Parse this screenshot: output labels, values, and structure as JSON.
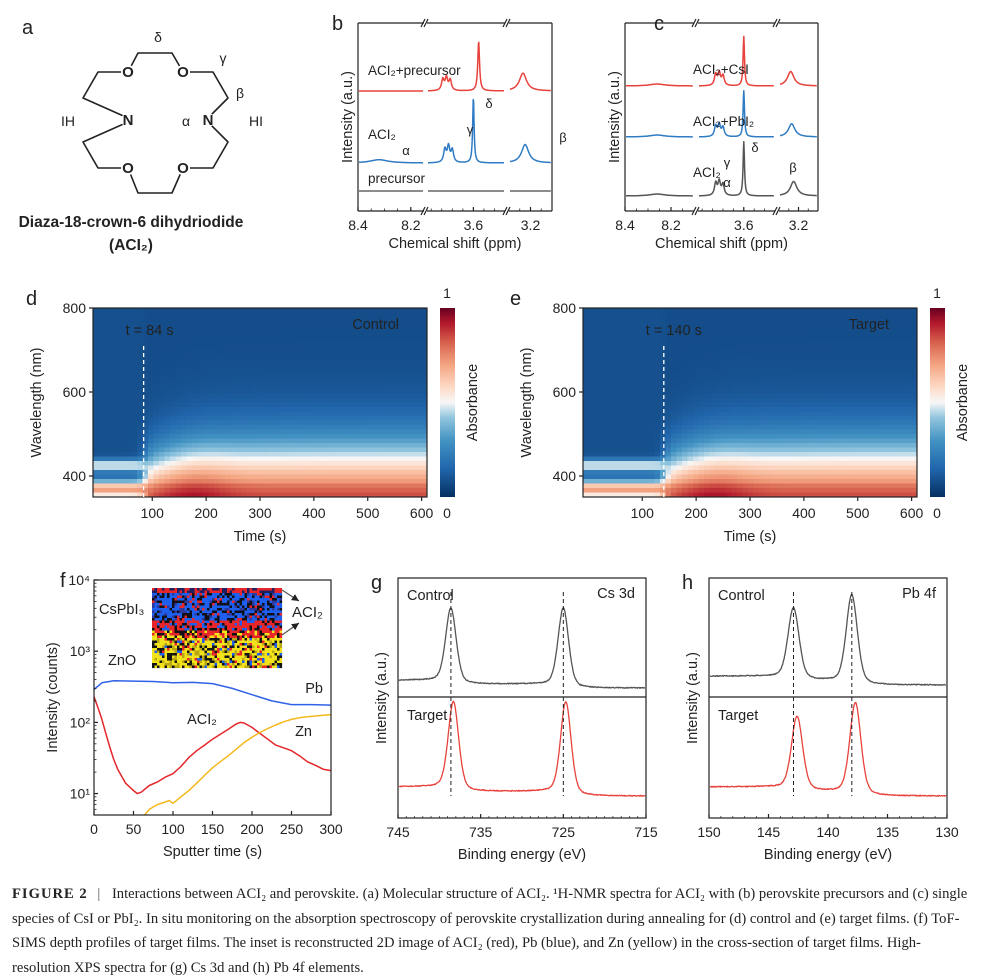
{
  "molecule": {
    "panel_letter": "a",
    "name": "Diaza-18-crown-6 dihydriodide",
    "formula": "(ACI₂)",
    "oxygen_label": "O",
    "nitrogen_label": "N",
    "left_salt": "IH",
    "right_salt": "HI",
    "greek_labels": {
      "delta": "δ",
      "gamma": "γ",
      "beta": "β",
      "alpha": "α"
    },
    "colors": {
      "oxygen": "#e01e1e",
      "nitrogen": "#2f6db5",
      "bond": "#222222"
    }
  },
  "chart_data": [
    {
      "panel_letter": "b",
      "type": "line",
      "xlabel": "Chemical shift (ppm)",
      "ylabel": "Intensity (a.u.)",
      "x_segments": [
        [
          8.4,
          8.15
        ],
        [
          3.82,
          3.45
        ],
        [
          3.3,
          3.1
        ]
      ],
      "xticks": [
        {
          "value": 8.4,
          "label": "8.4"
        },
        {
          "value": 8.2,
          "label": "8.2"
        },
        {
          "value": 3.6,
          "label": "3.6"
        },
        {
          "value": 3.2,
          "label": "3.2"
        }
      ],
      "series": [
        {
          "name": "ACI₂+precursor",
          "color": "#e8423c",
          "peaks": [
            {
              "ppm": 3.745,
              "intensity": 0.17,
              "width": 0.007
            },
            {
              "ppm": 3.728,
              "intensity": 0.19,
              "width": 0.007
            },
            {
              "ppm": 3.71,
              "intensity": 0.16,
              "width": 0.007
            },
            {
              "ppm": 3.575,
              "intensity": 0.75,
              "width": 0.005
            },
            {
              "ppm": 3.235,
              "intensity": 0.27,
              "width": 0.02
            }
          ]
        },
        {
          "name": "ACI₂",
          "color": "#2f7cc4",
          "peaks": [
            {
              "ppm": 8.32,
              "intensity": 0.05,
              "width": 0.04
            },
            {
              "ppm": 3.735,
              "intensity": 0.2,
              "width": 0.007
            },
            {
              "ppm": 3.718,
              "intensity": 0.24,
              "width": 0.007
            },
            {
              "ppm": 3.7,
              "intensity": 0.19,
              "width": 0.007
            },
            {
              "ppm": 3.6,
              "intensity": 1.0,
              "width": 0.004
            },
            {
              "ppm": 3.225,
              "intensity": 0.28,
              "width": 0.02
            }
          ]
        },
        {
          "name": "precursor",
          "color": "#666666",
          "peaks": []
        }
      ],
      "peak_labels": [
        {
          "label": "α",
          "ppm": 8.32
        },
        {
          "label": "γ",
          "ppm": 3.72
        },
        {
          "label": "δ",
          "ppm": 3.6
        },
        {
          "label": "β",
          "ppm": 3.225
        }
      ]
    },
    {
      "panel_letter": "c",
      "type": "line",
      "xlabel": "Chemical shift (ppm)",
      "ylabel": "Intensity (a.u.)",
      "x_segments": [
        [
          8.4,
          8.1
        ],
        [
          3.82,
          3.45
        ],
        [
          3.3,
          3.1
        ]
      ],
      "xticks": [
        {
          "value": 8.4,
          "label": "8.4"
        },
        {
          "value": 8.2,
          "label": "8.2"
        },
        {
          "value": 3.6,
          "label": "3.6"
        },
        {
          "value": 3.2,
          "label": "3.2"
        }
      ],
      "series": [
        {
          "name": "ACI₂+CsI",
          "color": "#e8423c",
          "peaks": [
            {
              "ppm": 8.26,
              "intensity": 0.03,
              "width": 0.04
            },
            {
              "ppm": 3.735,
              "intensity": 0.17,
              "width": 0.007
            },
            {
              "ppm": 3.718,
              "intensity": 0.19,
              "width": 0.007
            },
            {
              "ppm": 3.7,
              "intensity": 0.15,
              "width": 0.007
            },
            {
              "ppm": 3.6,
              "intensity": 0.75,
              "width": 0.004
            },
            {
              "ppm": 3.24,
              "intensity": 0.22,
              "width": 0.02
            }
          ]
        },
        {
          "name": "ACI₂+PbI₂",
          "color": "#2f7cc4",
          "peaks": [
            {
              "ppm": 8.26,
              "intensity": 0.03,
              "width": 0.04
            },
            {
              "ppm": 3.735,
              "intensity": 0.16,
              "width": 0.007
            },
            {
              "ppm": 3.718,
              "intensity": 0.18,
              "width": 0.007
            },
            {
              "ppm": 3.7,
              "intensity": 0.14,
              "width": 0.007
            },
            {
              "ppm": 3.6,
              "intensity": 0.7,
              "width": 0.004
            },
            {
              "ppm": 3.235,
              "intensity": 0.2,
              "width": 0.02
            }
          ]
        },
        {
          "name": "ACI₂",
          "color": "#555555",
          "peaks": [
            {
              "ppm": 8.26,
              "intensity": 0.03,
              "width": 0.04
            },
            {
              "ppm": 3.735,
              "intensity": 0.19,
              "width": 0.007
            },
            {
              "ppm": 3.718,
              "intensity": 0.21,
              "width": 0.007
            },
            {
              "ppm": 3.7,
              "intensity": 0.17,
              "width": 0.007
            },
            {
              "ppm": 3.6,
              "intensity": 0.82,
              "width": 0.004
            },
            {
              "ppm": 3.225,
              "intensity": 0.22,
              "width": 0.02
            }
          ]
        }
      ],
      "peak_labels": [
        {
          "label": "α",
          "ppm": 8.26
        },
        {
          "label": "γ",
          "ppm": 3.72
        },
        {
          "label": "δ",
          "ppm": 3.6
        },
        {
          "label": "β",
          "ppm": 3.225
        }
      ]
    },
    {
      "panel_letter": "d",
      "type": "heatmap",
      "title": "Control",
      "xlabel": "Time (s)",
      "ylabel": "Wavelength (nm)",
      "xlim": [
        -10,
        610
      ],
      "ylim": [
        350,
        800
      ],
      "xticks": [
        "100",
        "200",
        "300",
        "400",
        "500",
        "600"
      ],
      "yticks": [
        "400",
        "600",
        "800"
      ],
      "annotation": "t = 84 s",
      "crystallization_time_s": 84,
      "colorbar": {
        "label": "Absorbance",
        "max_label": "1",
        "min_label": "0"
      }
    },
    {
      "panel_letter": "e",
      "type": "heatmap",
      "title": "Target",
      "xlabel": "Time (s)",
      "ylabel": "Wavelength (nm)",
      "xlim": [
        -10,
        610
      ],
      "ylim": [
        350,
        800
      ],
      "xticks": [
        "100",
        "200",
        "300",
        "400",
        "500",
        "600"
      ],
      "yticks": [
        "400",
        "600",
        "800"
      ],
      "annotation": "t = 140 s",
      "crystallization_time_s": 140,
      "colorbar": {
        "label": "Absorbance",
        "max_label": "1",
        "min_label": "0"
      }
    },
    {
      "panel_letter": "f",
      "type": "line",
      "xlabel": "Sputter time (s)",
      "ylabel": "Intensity (counts)",
      "yscale": "log",
      "xlim": [
        0,
        300
      ],
      "ylim": [
        5,
        10000
      ],
      "xticks": [
        "0",
        "50",
        "100",
        "150",
        "200",
        "250",
        "300"
      ],
      "yticks": [
        {
          "value": 10,
          "label": "10¹"
        },
        {
          "value": 100,
          "label": "10²"
        },
        {
          "value": 1000,
          "label": "10³"
        },
        {
          "value": 10000,
          "label": "10⁴"
        }
      ],
      "series": [
        {
          "name": "Pb",
          "color": "#2f62e8",
          "x": [
            0,
            10,
            25,
            50,
            75,
            100,
            125,
            150,
            175,
            200,
            225,
            250,
            275,
            300
          ],
          "y": [
            290,
            360,
            385,
            380,
            375,
            360,
            365,
            350,
            300,
            245,
            200,
            178,
            178,
            175
          ]
        },
        {
          "name": "ACI₂",
          "color": "#e4262a",
          "x": [
            0,
            5,
            10,
            15,
            20,
            25,
            30,
            40,
            50,
            55,
            60,
            70,
            80,
            90,
            100,
            110,
            120,
            130,
            140,
            150,
            160,
            170,
            180,
            185,
            190,
            200,
            210,
            220,
            230,
            240,
            250,
            260,
            270,
            280,
            290,
            300
          ],
          "y": [
            230,
            160,
            110,
            70,
            45,
            30,
            22,
            14,
            11,
            10,
            10.5,
            13,
            14.5,
            17,
            19,
            24,
            32,
            40,
            48,
            58,
            68,
            80,
            95,
            100,
            98,
            85,
            70,
            58,
            48,
            44,
            40,
            34,
            28,
            25,
            22,
            21
          ]
        },
        {
          "name": "Zn",
          "color": "#f5b81c",
          "x": [
            64,
            70,
            80,
            90,
            95,
            100,
            110,
            120,
            130,
            140,
            150,
            160,
            170,
            180,
            190,
            200,
            210,
            220,
            230,
            240,
            250,
            260,
            270,
            280,
            290,
            300
          ],
          "y": [
            5,
            6,
            7,
            7.6,
            8,
            7.3,
            9,
            11,
            14,
            18,
            23,
            28,
            34,
            42,
            52,
            62,
            72,
            82,
            92,
            102,
            110,
            116,
            120,
            123,
            126,
            128
          ]
        }
      ],
      "annotations": {
        "top_layer": "CsPbI₃",
        "bottom_layer": "ZnO"
      },
      "inset": {
        "label": "ACI₂",
        "colors": {
          "ACI2": "#e8262a",
          "Pb": "#1e5ff0",
          "Zn": "#f2e21c"
        }
      }
    },
    {
      "panel_letter": "g",
      "type": "line",
      "title": "Cs 3d",
      "xlabel": "Binding energy (eV)",
      "ylabel": "Intensity (a.u.)",
      "xlim": [
        745,
        715
      ],
      "xticks": [
        "745",
        "735",
        "725",
        "715"
      ],
      "xtick_values": [
        745,
        735,
        725,
        715
      ],
      "dashed_at": [
        738.6,
        725.0
      ],
      "series": [
        {
          "name": "Control",
          "color": "#555555",
          "peaks": [
            {
              "be": 738.6,
              "intensity": 0.95,
              "fwhm": 1.5
            },
            {
              "be": 725.0,
              "intensity": 1.0,
              "fwhm": 1.5
            }
          ]
        },
        {
          "name": "Target",
          "color": "#e8423c",
          "peaks": [
            {
              "be": 738.3,
              "intensity": 0.95,
              "fwhm": 1.5
            },
            {
              "be": 724.7,
              "intensity": 1.0,
              "fwhm": 1.5
            }
          ]
        }
      ]
    },
    {
      "panel_letter": "h",
      "type": "line",
      "title": "Pb 4f",
      "xlabel": "Binding energy (eV)",
      "ylabel": "Intensity (a.u.)",
      "xlim": [
        150,
        130
      ],
      "xticks": [
        "150",
        "145",
        "140",
        "135",
        "130"
      ],
      "xtick_values": [
        150,
        145,
        140,
        135,
        130
      ],
      "dashed_at": [
        142.9,
        138.0
      ],
      "series": [
        {
          "name": "Control",
          "color": "#555555",
          "peaks": [
            {
              "be": 142.9,
              "intensity": 0.8,
              "fwhm": 1.1
            },
            {
              "be": 138.0,
              "intensity": 1.0,
              "fwhm": 1.1
            }
          ]
        },
        {
          "name": "Target",
          "color": "#e8423c",
          "peaks": [
            {
              "be": 142.6,
              "intensity": 0.8,
              "fwhm": 1.1
            },
            {
              "be": 137.7,
              "intensity": 1.0,
              "fwhm": 1.1
            }
          ]
        }
      ]
    }
  ],
  "caption": {
    "figure_number": "FIGURE 2",
    "separator": "|",
    "text": "Interactions between ACI₂ and perovskite. (a) Molecular structure of ACI₂. ¹H-NMR spectra for ACI₂ with (b) perovskite precursors and (c) single species of CsI or PbI₂. In situ monitoring on the absorption spectroscopy of perovskite crystallization during annealing for (d) control and (e) target films. (f) ToF-SIMS depth profiles of target films. The inset is reconstructed 2D image of ACI₂ (red), Pb (blue), and Zn (yellow) in the cross-section of target films. High-resolution XPS spectra for (g) Cs 3d and (h) Pb 4f elements."
  }
}
